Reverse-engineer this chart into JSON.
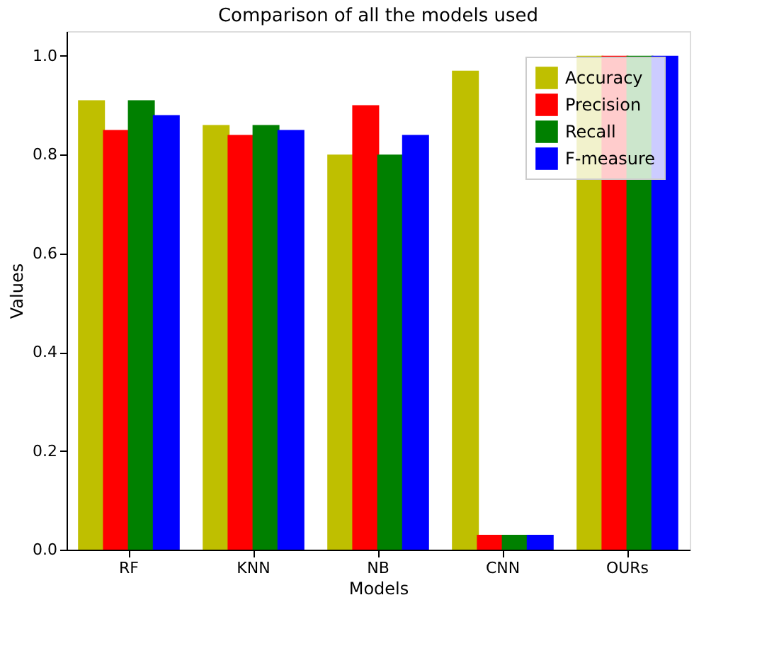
{
  "chart_data": {
    "type": "bar",
    "title": "Comparison of all the models used",
    "xlabel": "Models",
    "ylabel": "Values",
    "categories": [
      "RF",
      "KNN",
      "NB",
      "CNN",
      "OURs"
    ],
    "series": [
      {
        "name": "Accuracy",
        "color": "#bfbf00",
        "values": [
          0.91,
          0.86,
          0.8,
          0.97,
          1.0
        ]
      },
      {
        "name": "Precision",
        "color": "#ff0000",
        "values": [
          0.85,
          0.84,
          0.9,
          0.03,
          1.0
        ]
      },
      {
        "name": "Recall",
        "color": "#008000",
        "values": [
          0.91,
          0.86,
          0.8,
          0.03,
          1.0
        ]
      },
      {
        "name": "F-measure",
        "color": "#0000ff",
        "values": [
          0.88,
          0.85,
          0.84,
          0.03,
          1.0
        ]
      }
    ],
    "ylim": [
      0,
      1.05
    ],
    "yticks": [
      {
        "value": 0,
        "label": "0.0"
      },
      0.2,
      0.4,
      0.6,
      0.8,
      {
        "value": 1,
        "label": "1.0"
      }
    ],
    "grid": false,
    "legend": "top right"
  }
}
